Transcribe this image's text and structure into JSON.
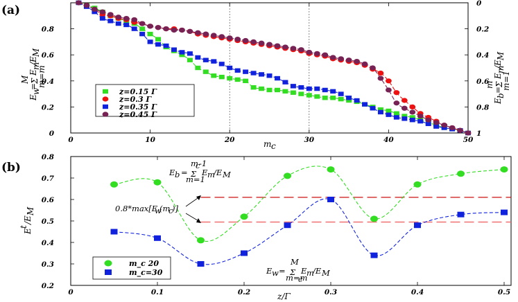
{
  "chart_data": [
    {
      "panel": "(a)",
      "type": "scatter",
      "xlabel": "m_c",
      "ylabel_left": "E_w = Σ_{m=m_c}^{M} E_m/E_M",
      "ylabel_right": "E_b = Σ_{m=1}^{m_c} E_m/E_M",
      "xlim": [
        0,
        50
      ],
      "ylim": [
        0,
        1
      ],
      "right_ylim": [
        1,
        0
      ],
      "xticks": [
        "0",
        "10",
        "20",
        "30",
        "40",
        "50"
      ],
      "yticks": [
        "0",
        "0.2",
        "0.4",
        "0.6",
        "0.8"
      ],
      "right_yticks": [
        "1",
        "0.8",
        "0.6",
        "0.4",
        "0.2",
        "0"
      ],
      "vlines": [
        20,
        30
      ],
      "legend": {
        "location": "lower-left"
      },
      "series": [
        {
          "name": "z=0.15 Γ",
          "color": "#33dd22",
          "marker": "square",
          "x": [
            1,
            2,
            3,
            4,
            5,
            6,
            7,
            8,
            9,
            10,
            11,
            12,
            13,
            14,
            15,
            16,
            17,
            18,
            19,
            20,
            21,
            22,
            23,
            24,
            25,
            26,
            27,
            28,
            29,
            30,
            31,
            32,
            33,
            34,
            35,
            36,
            37,
            38,
            39,
            40,
            41,
            42,
            43,
            44,
            45,
            46,
            47,
            48,
            49,
            50
          ],
          "y": [
            1.0,
            0.98,
            0.96,
            0.93,
            0.9,
            0.88,
            0.86,
            0.84,
            0.8,
            0.76,
            0.72,
            0.66,
            0.63,
            0.6,
            0.56,
            0.5,
            0.47,
            0.44,
            0.43,
            0.42,
            0.41,
            0.4,
            0.35,
            0.34,
            0.33,
            0.33,
            0.32,
            0.31,
            0.3,
            0.29,
            0.28,
            0.27,
            0.27,
            0.26,
            0.25,
            0.24,
            0.22,
            0.2,
            0.18,
            0.17,
            0.15,
            0.13,
            0.12,
            0.1,
            0.08,
            0.06,
            0.04,
            0.03,
            0.02,
            0.0
          ]
        },
        {
          "name": "z=0.3 Γ",
          "color": "#ee1111",
          "marker": "circle",
          "x": [
            1,
            2,
            3,
            4,
            5,
            6,
            7,
            8,
            9,
            10,
            11,
            12,
            13,
            14,
            15,
            16,
            17,
            18,
            19,
            20,
            21,
            22,
            23,
            24,
            25,
            26,
            27,
            28,
            29,
            30,
            31,
            32,
            33,
            34,
            35,
            36,
            37,
            38,
            39,
            40,
            41,
            42,
            43,
            44,
            45,
            46,
            47,
            48,
            49,
            50
          ],
          "y": [
            1.0,
            0.98,
            0.95,
            0.91,
            0.9,
            0.88,
            0.87,
            0.85,
            0.84,
            0.82,
            0.81,
            0.8,
            0.8,
            0.79,
            0.78,
            0.76,
            0.75,
            0.74,
            0.73,
            0.72,
            0.71,
            0.7,
            0.69,
            0.68,
            0.67,
            0.66,
            0.65,
            0.64,
            0.63,
            0.61,
            0.6,
            0.59,
            0.57,
            0.56,
            0.55,
            0.54,
            0.52,
            0.49,
            0.46,
            0.4,
            0.31,
            0.25,
            0.2,
            0.15,
            0.12,
            0.09,
            0.06,
            0.04,
            0.02,
            0.0
          ]
        },
        {
          "name": "z=0.35 Γ",
          "color": "#1122dd",
          "marker": "square",
          "x": [
            1,
            2,
            3,
            4,
            5,
            6,
            7,
            8,
            9,
            10,
            11,
            12,
            13,
            14,
            15,
            16,
            17,
            18,
            19,
            20,
            21,
            22,
            23,
            24,
            25,
            26,
            27,
            28,
            29,
            30,
            31,
            32,
            33,
            34,
            35,
            36,
            37,
            38,
            39,
            40,
            41,
            42,
            43,
            44,
            45,
            46,
            47,
            48,
            49,
            50
          ],
          "y": [
            1.0,
            0.97,
            0.93,
            0.88,
            0.86,
            0.84,
            0.83,
            0.8,
            0.76,
            0.7,
            0.68,
            0.67,
            0.64,
            0.62,
            0.61,
            0.58,
            0.56,
            0.55,
            0.53,
            0.5,
            0.48,
            0.47,
            0.46,
            0.45,
            0.44,
            0.42,
            0.39,
            0.36,
            0.35,
            0.34,
            0.34,
            0.33,
            0.32,
            0.3,
            0.27,
            0.25,
            0.22,
            0.19,
            0.16,
            0.14,
            0.12,
            0.11,
            0.1,
            0.09,
            0.07,
            0.05,
            0.04,
            0.03,
            0.02,
            0.0
          ]
        },
        {
          "name": "z=0.45 Γ",
          "color": "#772255",
          "marker": "circle",
          "x": [
            1,
            2,
            3,
            4,
            5,
            6,
            7,
            8,
            9,
            10,
            11,
            12,
            13,
            14,
            15,
            16,
            17,
            18,
            19,
            20,
            21,
            22,
            23,
            24,
            25,
            26,
            27,
            28,
            29,
            30,
            31,
            32,
            33,
            34,
            35,
            36,
            37,
            38,
            39,
            40,
            41,
            42,
            43,
            44,
            45,
            46,
            47,
            48,
            49,
            50
          ],
          "y": [
            1.0,
            0.98,
            0.95,
            0.93,
            0.91,
            0.89,
            0.88,
            0.87,
            0.84,
            0.82,
            0.81,
            0.8,
            0.79,
            0.79,
            0.78,
            0.77,
            0.76,
            0.75,
            0.74,
            0.73,
            0.72,
            0.71,
            0.7,
            0.69,
            0.68,
            0.67,
            0.66,
            0.65,
            0.64,
            0.62,
            0.61,
            0.6,
            0.58,
            0.57,
            0.56,
            0.55,
            0.53,
            0.5,
            0.42,
            0.33,
            0.23,
            0.19,
            0.16,
            0.13,
            0.1,
            0.08,
            0.06,
            0.04,
            0.02,
            0.0
          ]
        }
      ]
    },
    {
      "panel": "(b)",
      "type": "scatter",
      "xlabel": "z/Γ",
      "ylabel": "E^{t} / E_M",
      "xlim": [
        0,
        0.5
      ],
      "ylim": [
        0.2,
        0.8
      ],
      "xticks": [
        "0",
        "0.1",
        "0.2",
        "0.3",
        "0.4",
        "0.5"
      ],
      "yticks": [
        "0.2",
        "0.3",
        "0.4",
        "0.5",
        "0.6",
        "0.7",
        "0.8"
      ],
      "legend": {
        "location": "lower-left"
      },
      "series": [
        {
          "name": "m_c 20",
          "color": "#33dd22",
          "marker": "circle",
          "x": [
            0.05,
            0.1,
            0.15,
            0.2,
            0.25,
            0.3,
            0.35,
            0.4,
            0.45,
            0.5
          ],
          "y": [
            0.67,
            0.68,
            0.41,
            0.52,
            0.71,
            0.74,
            0.51,
            0.67,
            0.72,
            0.74
          ]
        },
        {
          "name": "m_c=30",
          "color": "#1122dd",
          "marker": "square",
          "x": [
            0.05,
            0.1,
            0.15,
            0.2,
            0.25,
            0.3,
            0.35,
            0.4,
            0.45,
            0.5
          ],
          "y": [
            0.45,
            0.42,
            0.3,
            0.35,
            0.48,
            0.6,
            0.34,
            0.48,
            0.53,
            0.54
          ]
        }
      ],
      "hlines": [
        {
          "y": 0.61,
          "color": "#cc1111",
          "from_x": 0.15,
          "to_x": 0.5
        },
        {
          "y": 0.495,
          "color": "#ee6666",
          "from_x": 0.15,
          "to_x": 0.5
        }
      ],
      "annotations": {
        "eb": "E_b = Σ_{m=1}^{m_c-1} E_m/E_M",
        "max": "0.8*max[E_w(m_c)]",
        "ew": "E_w = Σ_{m=m_c}^{M} E_m/E_M"
      }
    }
  ]
}
